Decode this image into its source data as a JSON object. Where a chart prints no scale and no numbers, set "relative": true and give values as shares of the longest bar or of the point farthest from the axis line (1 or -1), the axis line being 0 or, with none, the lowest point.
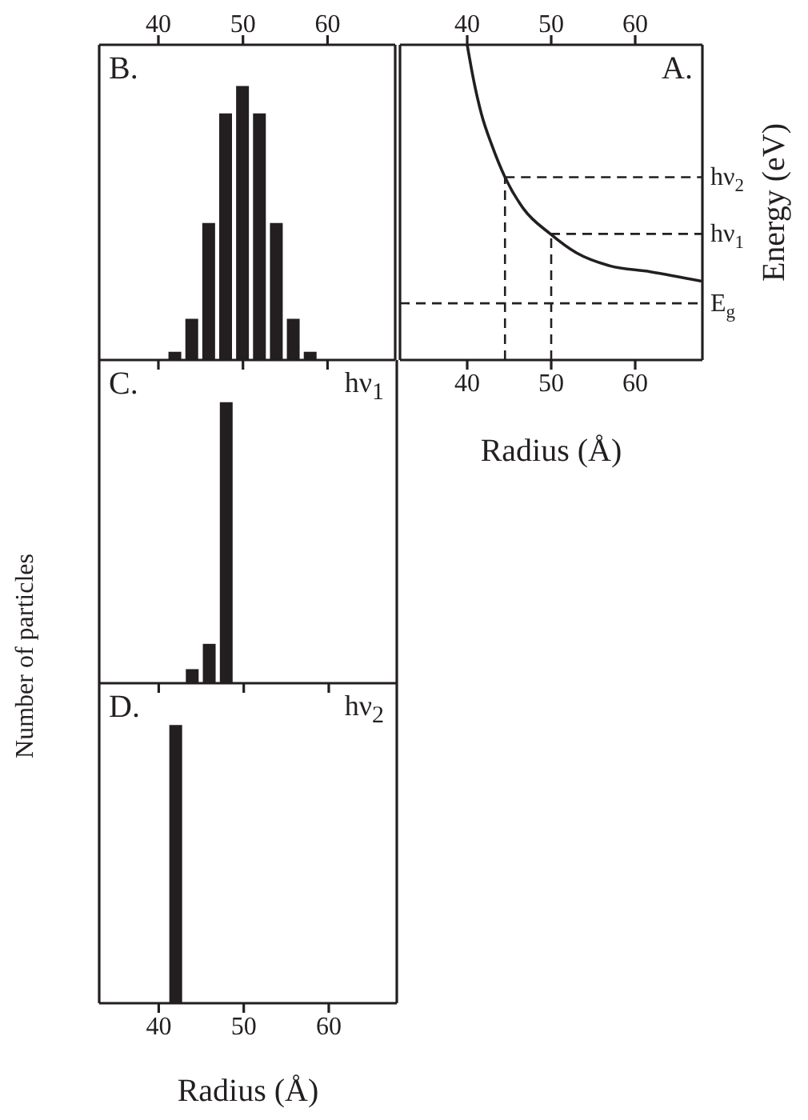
{
  "chart_data": [
    {
      "type": "line",
      "title": "A.",
      "xlabel": "Radius (Å)",
      "ylabel": "Energy (eV)",
      "relative": true,
      "color": "#231f20",
      "x": [
        40,
        40.75,
        41.7,
        42.96,
        44.5,
        46.7,
        49.9,
        53,
        56.8,
        61.8,
        67.9
      ],
      "values": [
        1,
        0.89,
        0.78,
        0.68,
        0.58,
        0.48,
        0.4,
        0.34,
        0.3,
        0.28,
        0.25
      ],
      "xlim": [
        32,
        68
      ],
      "xticks": [
        40,
        50,
        60
      ],
      "x2lim": [
        32,
        68
      ],
      "x2ticks": [
        40,
        50,
        60
      ],
      "ref_lines": [
        {
          "axis": "y",
          "value": 0.58,
          "label": "hν$_{2}$",
          "line_style": "dashed"
        },
        {
          "axis": "y",
          "value": 0.4,
          "label": "hν$_{1}$",
          "line_style": "dashed"
        },
        {
          "axis": "y",
          "value": 0.18,
          "label": "E$_{g}$",
          "line_style": "dashed"
        },
        {
          "axis": "x",
          "value": 44.5,
          "line_style": "dashed"
        },
        {
          "axis": "x",
          "value": 50,
          "line_style": "dashed"
        }
      ]
    },
    {
      "type": "bar",
      "title": "B.",
      "relative": true,
      "x": [
        42,
        44,
        46,
        48,
        50,
        52,
        54,
        56,
        58
      ],
      "series": [
        {
          "color": "#231f20",
          "axis": "x2",
          "values": [
            0.03,
            0.15,
            0.5,
            0.9,
            1,
            0.9,
            0.5,
            0.15,
            0.03
          ]
        }
      ],
      "x2lim": [
        33,
        68
      ],
      "x2ticks": [
        40,
        50,
        60
      ]
    },
    {
      "type": "bar",
      "title": "C.",
      "ylabel": "Number of particles",
      "annotations": [
        "hν$_{1}$"
      ],
      "relative": true,
      "color": "#231f20",
      "x": [
        44,
        46,
        48
      ],
      "values": [
        0.05,
        0.14,
        1
      ],
      "xlim": [
        33,
        68
      ],
      "xticks": [
        40,
        50,
        60
      ],
      "tick_labels": false
    },
    {
      "type": "bar",
      "title": "D.",
      "xlabel": "Radius (Å)",
      "annotations": [
        "hν$_{2}$"
      ],
      "relative": true,
      "color": "#231f20",
      "x": [
        42
      ],
      "values": [
        1
      ],
      "xlim": [
        33,
        68
      ],
      "xticks": [
        40,
        50,
        60
      ]
    }
  ]
}
